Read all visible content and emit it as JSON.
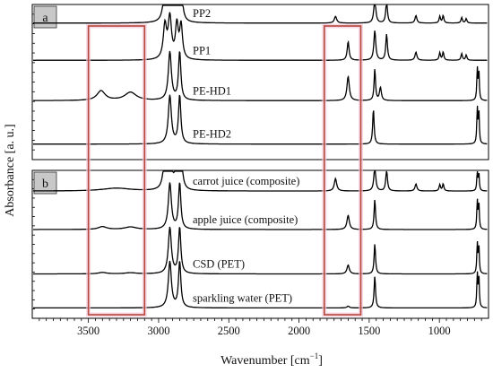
{
  "chart_data": {
    "type": "line",
    "xlabel": "Wavenumber [cm",
    "xlabel_sup": "−1",
    "xlabel_tail": "]",
    "ylabel": "Absorbance [a. u.]",
    "xlim": [
      3900,
      650
    ],
    "x_reversed": true,
    "x_ticks": [
      3500,
      3000,
      2500,
      2000,
      1500,
      1000
    ],
    "highlight_regions": [
      {
        "from": 3500,
        "to": 3100,
        "color": "#b5473a"
      },
      {
        "from": 1820,
        "to": 1560,
        "color": "#b5473a"
      }
    ],
    "panels": [
      {
        "label": "a",
        "series": [
          {
            "name": "PP2",
            "baseline": 0.88,
            "peaks": [
              [
                2955,
                0.9,
                14
              ],
              [
                2920,
                1.1,
                14
              ],
              [
                2870,
                0.9,
                12
              ],
              [
                2840,
                0.9,
                12
              ],
              [
                1740,
                0.18,
                10
              ],
              [
                1460,
                0.7,
                8
              ],
              [
                1376,
                0.6,
                7
              ],
              [
                1167,
                0.2,
                8
              ],
              [
                997,
                0.18,
                6
              ],
              [
                973,
                0.2,
                6
              ],
              [
                841,
                0.15,
                6
              ],
              [
                809,
                0.12,
                6
              ]
            ]
          },
          {
            "name": "PP1",
            "baseline": 0.64,
            "peaks": [
              [
                2955,
                0.9,
                14
              ],
              [
                2920,
                1.1,
                14
              ],
              [
                2870,
                0.9,
                12
              ],
              [
                2840,
                0.9,
                12
              ],
              [
                1650,
                0.5,
                8
              ],
              [
                1460,
                0.8,
                8
              ],
              [
                1376,
                0.7,
                7
              ],
              [
                1167,
                0.22,
                8
              ],
              [
                997,
                0.2,
                6
              ],
              [
                973,
                0.22,
                6
              ],
              [
                841,
                0.18,
                6
              ],
              [
                809,
                0.14,
                6
              ]
            ]
          },
          {
            "name": "PE-HD1",
            "baseline": 0.38,
            "peaks": [
              [
                3410,
                0.26,
                35
              ],
              [
                3200,
                0.22,
                50
              ],
              [
                2920,
                1.3,
                13
              ],
              [
                2850,
                1.3,
                10
              ],
              [
                1650,
                0.65,
                10
              ],
              [
                1460,
                0.85,
                6
              ],
              [
                1420,
                0.35,
                8
              ],
              [
                730,
                0.85,
                4
              ],
              [
                719,
                0.8,
                4
              ]
            ]
          },
          {
            "name": "PE-HD2",
            "baseline": 0.1,
            "peaks": [
              [
                2920,
                1.3,
                13
              ],
              [
                2850,
                1.3,
                10
              ],
              [
                1470,
                0.95,
                6
              ],
              [
                730,
                0.95,
                4
              ],
              [
                719,
                0.9,
                4
              ]
            ]
          }
        ]
      },
      {
        "label": "b",
        "series": [
          {
            "name": "carrot juice (composite)",
            "baseline": 0.86,
            "peaks": [
              [
                3300,
                0.08,
                120
              ],
              [
                2955,
                0.9,
                14
              ],
              [
                2920,
                1.1,
                14
              ],
              [
                2870,
                0.9,
                12
              ],
              [
                2840,
                0.9,
                12
              ],
              [
                1740,
                0.35,
                10
              ],
              [
                1460,
                0.7,
                8
              ],
              [
                1376,
                0.6,
                7
              ],
              [
                1167,
                0.2,
                8
              ],
              [
                997,
                0.18,
                6
              ],
              [
                973,
                0.2,
                6
              ],
              [
                730,
                0.55,
                4
              ],
              [
                719,
                0.5,
                4
              ]
            ]
          },
          {
            "name": "apple juice (composite)",
            "baseline": 0.6,
            "peaks": [
              [
                3400,
                0.08,
                35
              ],
              [
                3200,
                0.07,
                50
              ],
              [
                2920,
                1.3,
                13
              ],
              [
                2850,
                1.3,
                10
              ],
              [
                1650,
                0.4,
                10
              ],
              [
                1460,
                0.85,
                6
              ],
              [
                730,
                0.8,
                4
              ],
              [
                719,
                0.75,
                4
              ]
            ]
          },
          {
            "name": "CSD (PET)",
            "baseline": 0.3,
            "peaks": [
              [
                3400,
                0.04,
                35
              ],
              [
                3200,
                0.03,
                50
              ],
              [
                2920,
                1.3,
                13
              ],
              [
                2850,
                1.3,
                10
              ],
              [
                1650,
                0.25,
                10
              ],
              [
                1460,
                0.85,
                6
              ],
              [
                730,
                0.85,
                4
              ],
              [
                719,
                0.8,
                4
              ]
            ]
          },
          {
            "name": "sparkling water (PET)",
            "baseline": 0.07,
            "peaks": [
              [
                2920,
                1.3,
                13
              ],
              [
                2850,
                1.3,
                10
              ],
              [
                1650,
                0.05,
                10
              ],
              [
                1460,
                0.9,
                6
              ],
              [
                730,
                0.95,
                4
              ],
              [
                719,
                0.9,
                4
              ]
            ]
          }
        ]
      }
    ]
  }
}
